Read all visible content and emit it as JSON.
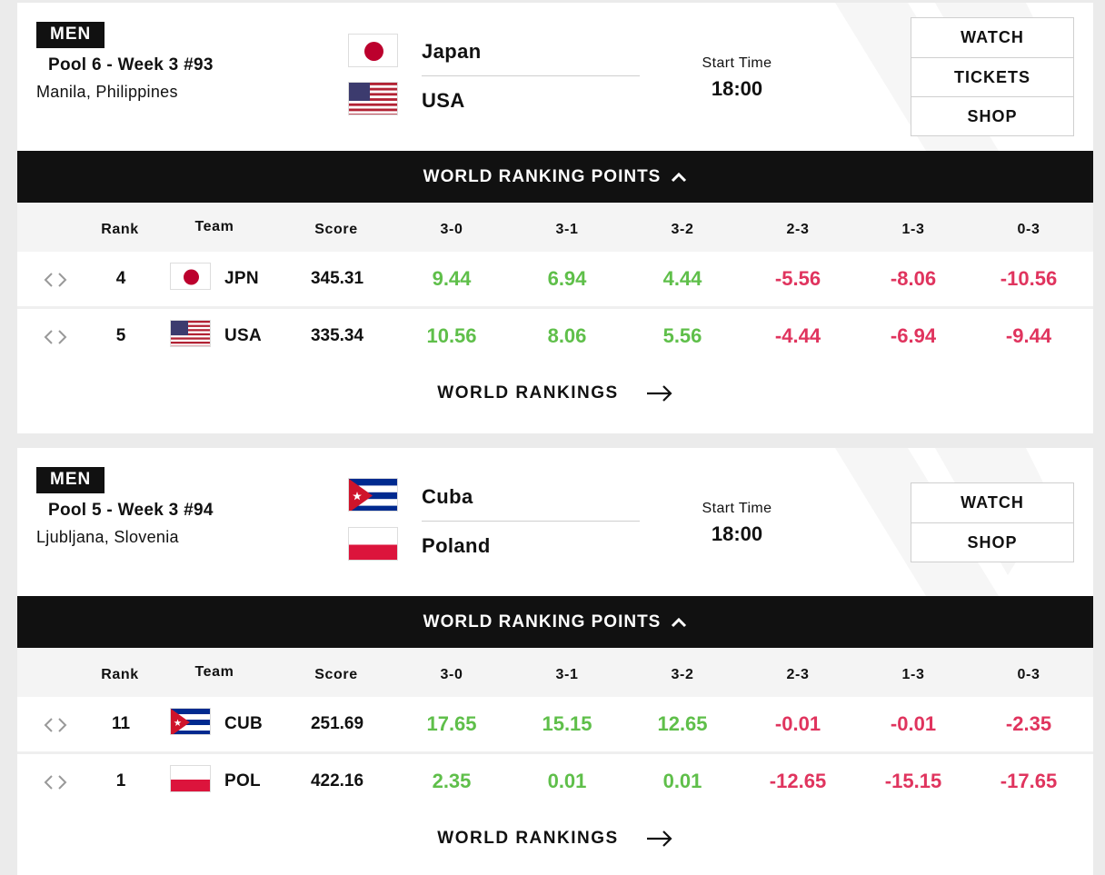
{
  "matches": [
    {
      "gender": "MEN",
      "pool": "Pool 6 - Week 3 #93",
      "location": "Manila, Philippines",
      "team1": "Japan",
      "team2": "USA",
      "start_label": "Start Time",
      "start_time": "18:00",
      "buttons": [
        "WATCH",
        "TICKETS",
        "SHOP"
      ],
      "wrp_label": "WORLD RANKING POINTS",
      "columns": [
        "Rank",
        "Team",
        "Score",
        "3-0",
        "3-1",
        "3-2",
        "2-3",
        "1-3",
        "0-3"
      ],
      "rows": [
        {
          "rank": "4",
          "code": "JPN",
          "flag": "jp",
          "score": "345.31",
          "points": [
            "9.44",
            "6.94",
            "4.44",
            "-5.56",
            "-8.06",
            "-10.56"
          ]
        },
        {
          "rank": "5",
          "code": "USA",
          "flag": "us",
          "score": "335.34",
          "points": [
            "10.56",
            "8.06",
            "5.56",
            "-4.44",
            "-6.94",
            "-9.44"
          ]
        }
      ],
      "rankings_link": "WORLD RANKINGS"
    },
    {
      "gender": "MEN",
      "pool": "Pool 5 - Week 3 #94",
      "location": "Ljubljana, Slovenia",
      "team1": "Cuba",
      "team2": "Poland",
      "start_label": "Start Time",
      "start_time": "18:00",
      "buttons": [
        "WATCH",
        "SHOP"
      ],
      "wrp_label": "WORLD RANKING POINTS",
      "columns": [
        "Rank",
        "Team",
        "Score",
        "3-0",
        "3-1",
        "3-2",
        "2-3",
        "1-3",
        "0-3"
      ],
      "rows": [
        {
          "rank": "11",
          "code": "CUB",
          "flag": "cu",
          "score": "251.69",
          "points": [
            "17.65",
            "15.15",
            "12.65",
            "-0.01",
            "-0.01",
            "-2.35"
          ]
        },
        {
          "rank": "1",
          "code": "POL",
          "flag": "pl",
          "score": "422.16",
          "points": [
            "2.35",
            "0.01",
            "0.01",
            "-12.65",
            "-15.15",
            "-17.65"
          ]
        }
      ],
      "rankings_link": "WORLD RANKINGS"
    }
  ],
  "colors": {
    "positive": "#5fbf4a",
    "negative": "#e0345e",
    "bar": "#111111"
  },
  "icons": {
    "collapse": "chevron-up-icon",
    "link": "arrow-right-icon",
    "sort": "left-right-arrows-icon"
  }
}
